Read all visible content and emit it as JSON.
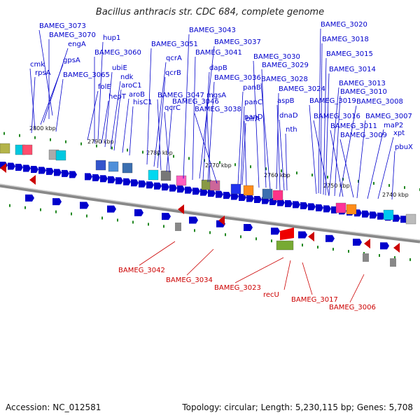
{
  "title": "Bacillus anthracis str. CDC 684, complete genome",
  "footer": {
    "accession": "Accession: NC_012581",
    "summary": "Topology: circular; Length: 5,230,115 bp; Genes: 5,708"
  },
  "colors": {
    "forward": "#0000cc",
    "reverse": "#cc0000",
    "backbone": "#888888",
    "tick": "#228822"
  },
  "kbp_labels": [
    "2800 kbp",
    "2790 kbp",
    "2780 kbp",
    "2770 kbp",
    "2760 kbp",
    "2750 kbp",
    "2740 kbp"
  ],
  "forward_labels": [
    "BAMEG_3073",
    "BAMEG_3070",
    "engA",
    "cmk",
    "gpsA",
    "rpsA",
    "hup1",
    "BAMEG_3060",
    "BAMEG_3065",
    "ubiE",
    "folE",
    "ndk",
    "aroC1",
    "hepT",
    "aroB",
    "hisC1",
    "BAMEG_3051",
    "qcrA",
    "qcrB",
    "BAMEG_3046",
    "BAMEG_3047",
    "qcrC",
    "BAMEG_3043",
    "BAMEG_3037",
    "BAMEG_3041",
    "dapB",
    "BAMEG_3036",
    "mgsA",
    "BAMEG_3038",
    "panB",
    "panC",
    "birA",
    "panD",
    "BAMEG_3030",
    "BAMEG_3029",
    "BAMEG_3028",
    "BAMEG_3024",
    "aspB",
    "dnaD",
    "nth",
    "BAMEG_3020",
    "BAMEG_3018",
    "BAMEG_3015",
    "BAMEG_3014",
    "BAMEG_3013",
    "BAMEG_3010",
    "BAMEG_3019",
    "BAMEG_3008",
    "BAMEG_3016",
    "BAMEG_3007",
    "BAMEG_3011",
    "maP2",
    "BAMEG_3009",
    "xpt",
    "pbuX"
  ],
  "reverse_labels": [
    "BAMEG_3042",
    "BAMEG_3034",
    "BAMEG_3023",
    "recU",
    "BAMEG_3017",
    "BAMEG_3006"
  ]
}
